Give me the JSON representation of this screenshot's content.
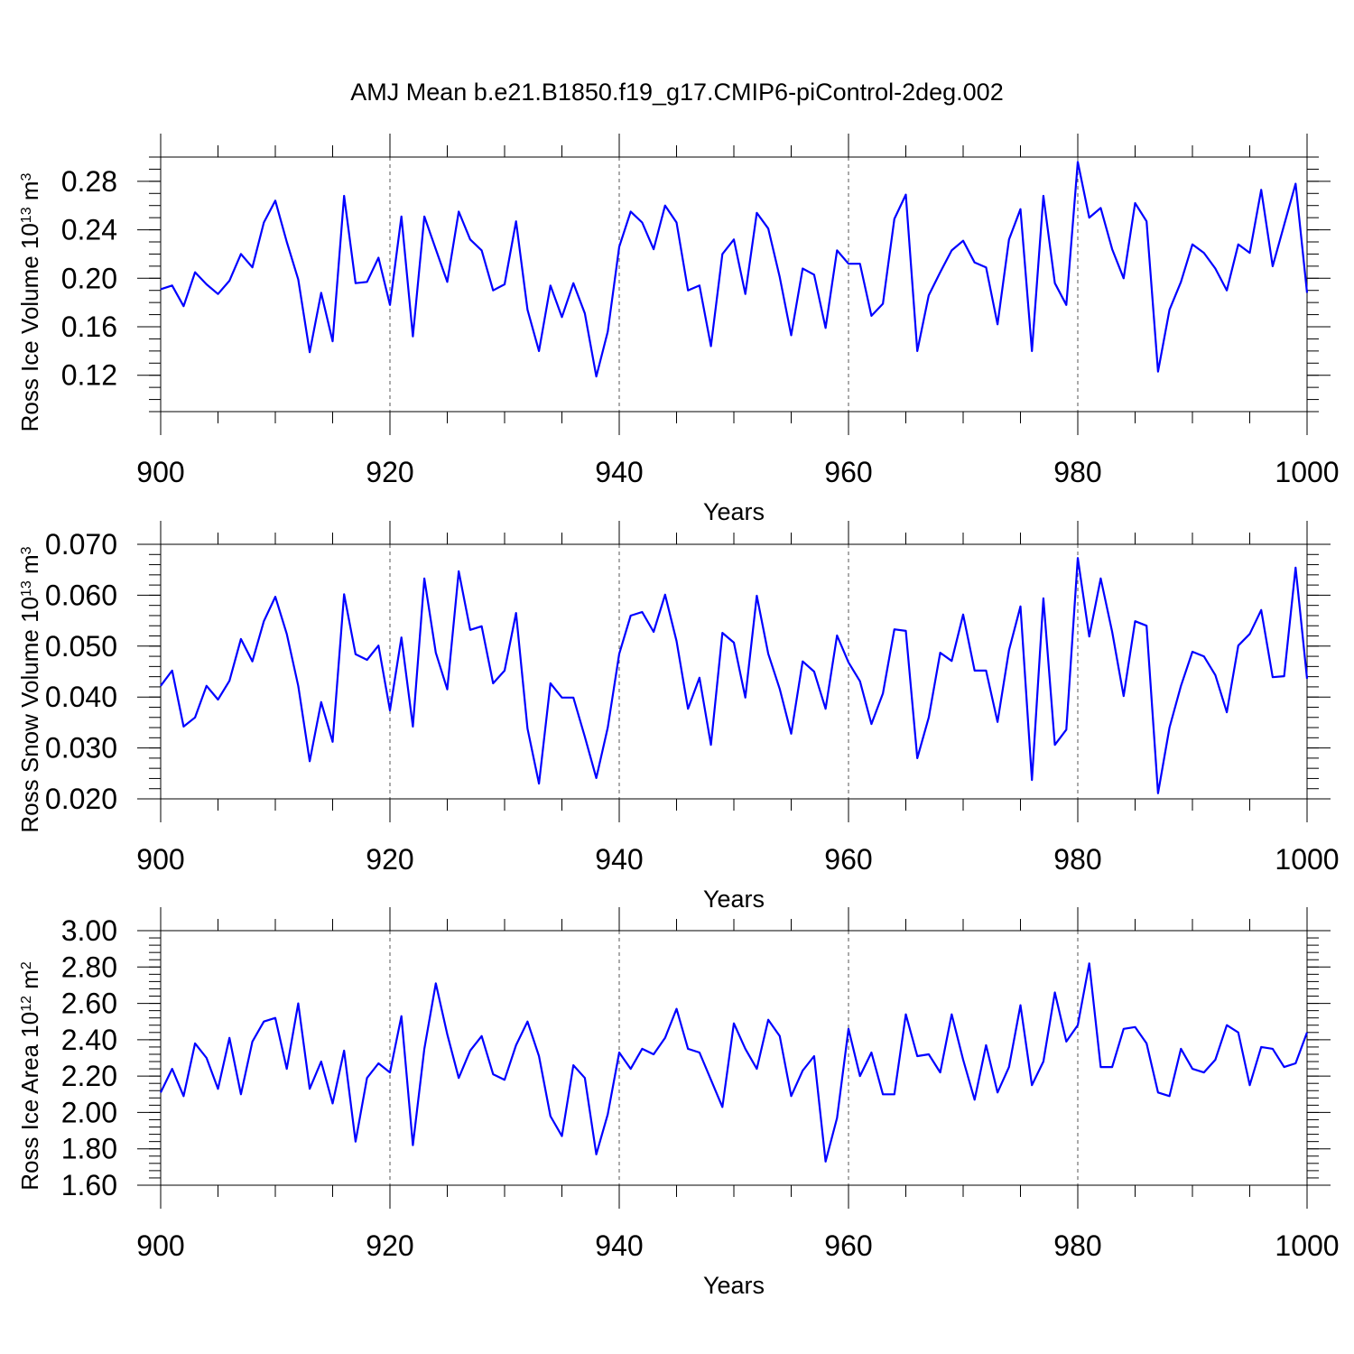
{
  "title": "AMJ Mean b.e21.B1850.f19_g17.CMIP6-piControl-2deg.002",
  "chart_data": [
    {
      "type": "line",
      "xlabel": "Years",
      "ylabel": {
        "text": "Ross Ice Volume 10",
        "exp": "13",
        "unit": " m",
        "unit_exp": "3"
      },
      "xlim": [
        900,
        1000
      ],
      "ylim": [
        0.09,
        0.3
      ],
      "xticks": [
        "900",
        "920",
        "940",
        "960",
        "980",
        "1000"
      ],
      "yticks": [
        "0.12",
        "0.16",
        "0.20",
        "0.24",
        "0.28"
      ],
      "grid": "dashed vertical at major x ticks",
      "color": "#0000ff",
      "x_start": 900,
      "values": [
        0.191,
        0.194,
        0.177,
        0.205,
        0.195,
        0.187,
        0.198,
        0.22,
        0.209,
        0.246,
        0.264,
        0.23,
        0.199,
        0.139,
        0.188,
        0.148,
        0.268,
        0.196,
        0.197,
        0.217,
        0.178,
        0.251,
        0.152,
        0.251,
        0.224,
        0.197,
        0.255,
        0.232,
        0.223,
        0.19,
        0.195,
        0.247,
        0.174,
        0.14,
        0.194,
        0.168,
        0.196,
        0.171,
        0.119,
        0.156,
        0.226,
        0.255,
        0.246,
        0.224,
        0.26,
        0.246,
        0.19,
        0.194,
        0.144,
        0.22,
        0.232,
        0.187,
        0.254,
        0.241,
        0.201,
        0.153,
        0.208,
        0.203,
        0.159,
        0.223,
        0.212,
        0.212,
        0.169,
        0.179,
        0.249,
        0.269,
        0.14,
        0.186,
        0.205,
        0.223,
        0.231,
        0.213,
        0.209,
        0.162,
        0.232,
        0.257,
        0.14,
        0.268,
        0.196,
        0.178,
        0.296,
        0.25,
        0.258,
        0.224,
        0.2,
        0.262,
        0.247,
        0.123,
        0.174,
        0.197,
        0.228,
        0.221,
        0.208,
        0.19,
        0.228,
        0.221,
        0.273,
        0.21,
        0.244,
        0.278,
        0.188
      ]
    },
    {
      "type": "line",
      "xlabel": "Years",
      "ylabel": {
        "text": "Ross Snow Volume 10",
        "exp": "13",
        "unit": " m",
        "unit_exp": "3"
      },
      "xlim": [
        900,
        1000
      ],
      "ylim": [
        0.02,
        0.07
      ],
      "xticks": [
        "900",
        "920",
        "940",
        "960",
        "980",
        "1000"
      ],
      "yticks": [
        "0.020",
        "0.030",
        "0.040",
        "0.050",
        "0.060",
        "0.070"
      ],
      "grid": "dashed vertical at major x ticks",
      "color": "#0000ff",
      "x_start": 900,
      "values": [
        0.0422,
        0.0452,
        0.0342,
        0.036,
        0.0422,
        0.0395,
        0.0432,
        0.0514,
        0.047,
        0.0549,
        0.0597,
        0.0524,
        0.0422,
        0.0274,
        0.039,
        0.0312,
        0.0602,
        0.0484,
        0.0473,
        0.0501,
        0.0374,
        0.0517,
        0.0342,
        0.0633,
        0.0487,
        0.0415,
        0.0647,
        0.0532,
        0.0539,
        0.0427,
        0.0452,
        0.0565,
        0.0338,
        0.023,
        0.0427,
        0.0399,
        0.0399,
        0.0322,
        0.0241,
        0.034,
        0.0485,
        0.056,
        0.0567,
        0.0528,
        0.0601,
        0.051,
        0.0377,
        0.0438,
        0.0306,
        0.0526,
        0.0507,
        0.0399,
        0.0599,
        0.0485,
        0.0416,
        0.0328,
        0.047,
        0.045,
        0.0377,
        0.0521,
        0.0468,
        0.0431,
        0.0347,
        0.0407,
        0.0533,
        0.053,
        0.028,
        0.036,
        0.0487,
        0.0471,
        0.0562,
        0.0452,
        0.0452,
        0.0351,
        0.0492,
        0.0578,
        0.0237,
        0.0594,
        0.0306,
        0.0336,
        0.0673,
        0.0519,
        0.0633,
        0.0528,
        0.0402,
        0.0549,
        0.054,
        0.0211,
        0.034,
        0.0422,
        0.0489,
        0.048,
        0.0443,
        0.037,
        0.0501,
        0.0524,
        0.0571,
        0.0439,
        0.0441,
        0.0654,
        0.0436
      ]
    },
    {
      "type": "line",
      "xlabel": "Years",
      "ylabel": {
        "text": "Ross Ice Area 10",
        "exp": "12",
        "unit": " m",
        "unit_exp": "2"
      },
      "xlim": [
        900,
        1000
      ],
      "ylim": [
        1.6,
        3.0
      ],
      "xticks": [
        "900",
        "920",
        "940",
        "960",
        "980",
        "1000"
      ],
      "yticks": [
        "1.60",
        "1.80",
        "2.00",
        "2.20",
        "2.40",
        "2.60",
        "2.80",
        "3.00"
      ],
      "grid": "dashed vertical at major x ticks",
      "color": "#0000ff",
      "x_start": 900,
      "values": [
        2.11,
        2.24,
        2.09,
        2.38,
        2.3,
        2.13,
        2.41,
        2.1,
        2.39,
        2.5,
        2.52,
        2.24,
        2.6,
        2.13,
        2.28,
        2.05,
        2.34,
        1.84,
        2.19,
        2.27,
        2.22,
        2.53,
        1.82,
        2.35,
        2.71,
        2.43,
        2.19,
        2.34,
        2.42,
        2.21,
        2.18,
        2.37,
        2.5,
        2.31,
        1.98,
        1.87,
        2.26,
        2.19,
        1.77,
        1.99,
        2.33,
        2.24,
        2.35,
        2.32,
        2.41,
        2.57,
        2.35,
        2.33,
        2.18,
        2.03,
        2.49,
        2.35,
        2.24,
        2.51,
        2.42,
        2.09,
        2.23,
        2.31,
        1.73,
        1.97,
        2.46,
        2.2,
        2.33,
        2.1,
        2.1,
        2.54,
        2.31,
        2.32,
        2.22,
        2.54,
        2.29,
        2.07,
        2.37,
        2.11,
        2.25,
        2.59,
        2.15,
        2.28,
        2.66,
        2.39,
        2.48,
        2.82,
        2.25,
        2.25,
        2.46,
        2.47,
        2.38,
        2.11,
        2.09,
        2.35,
        2.24,
        2.22,
        2.29,
        2.48,
        2.44,
        2.15,
        2.36,
        2.35,
        2.25,
        2.27,
        2.44
      ]
    }
  ]
}
